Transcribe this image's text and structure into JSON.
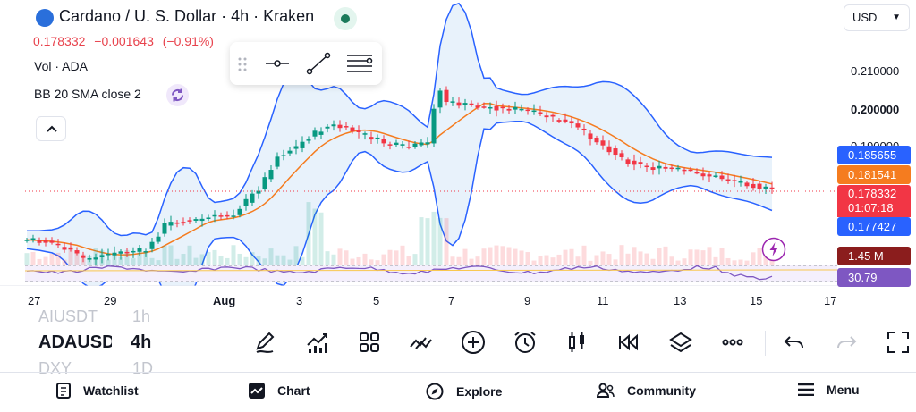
{
  "header": {
    "symbol_title": "Cardano / U. S. Dollar · 4h · Kraken",
    "price": "0.178332",
    "change": "−0.001643",
    "change_pct": "(−0.91%)",
    "currency": "USD"
  },
  "indicators": {
    "volume_label": "Vol · ADA",
    "bb_label": "BB 20 SMA close 2"
  },
  "price_axis": {
    "labels": [
      "0.210000",
      "0.200000",
      "0.190000"
    ],
    "tags": {
      "bb_upper": "0.185655",
      "bb_basis": "0.181541",
      "last_price": "0.178332",
      "countdown": "01:07:18",
      "bb_lower": "0.177427",
      "volume": "1.45 M",
      "rsi": "30.79"
    }
  },
  "time_axis": {
    "labels": [
      "27",
      "29",
      "Aug",
      "3",
      "5",
      "7",
      "9",
      "11",
      "13",
      "15",
      "17"
    ]
  },
  "watchlist_rows": [
    {
      "symbol": "AIUSDT",
      "tf": "1h"
    },
    {
      "symbol": "ADAUSD",
      "tf": "4h"
    },
    {
      "symbol": "DXY",
      "tf": "1D"
    }
  ],
  "bottom_nav": {
    "watchlist": "Watchlist",
    "chart": "Chart",
    "explore": "Explore",
    "community": "Community",
    "menu": "Menu"
  },
  "colors": {
    "up": "#089981",
    "down": "#f23645",
    "bb_band": "#2962ff",
    "bb_basis": "#f57c1f",
    "bb_fill": "#e8f2fb"
  }
}
